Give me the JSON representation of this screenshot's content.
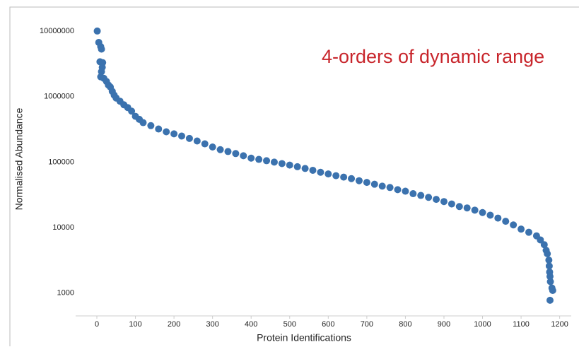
{
  "chart_data": {
    "type": "scatter",
    "annotation": "4-orders of dynamic range",
    "x_label": "Protein Identifications",
    "y_label": "Normalised Abundance",
    "x": [
      1,
      5,
      10,
      12,
      8,
      15,
      14,
      12,
      10,
      18,
      25,
      30,
      35,
      40,
      45,
      50,
      60,
      70,
      80,
      90,
      100,
      110,
      120,
      140,
      160,
      180,
      200,
      220,
      240,
      260,
      280,
      300,
      320,
      340,
      360,
      380,
      400,
      420,
      440,
      460,
      480,
      500,
      520,
      540,
      560,
      580,
      600,
      620,
      640,
      660,
      680,
      700,
      720,
      740,
      760,
      780,
      800,
      820,
      840,
      860,
      880,
      900,
      920,
      940,
      960,
      980,
      1000,
      1020,
      1040,
      1060,
      1080,
      1100,
      1120,
      1140,
      1150,
      1160,
      1165,
      1168,
      1172,
      1173,
      1174,
      1175,
      1176,
      1180,
      1182,
      1175
    ],
    "values": [
      10000000,
      6700000,
      5800000,
      5300000,
      3400000,
      3300000,
      2800000,
      2400000,
      2000000,
      1900000,
      1700000,
      1500000,
      1400000,
      1200000,
      1050000,
      950000,
      850000,
      750000,
      680000,
      600000,
      500000,
      450000,
      400000,
      360000,
      320000,
      290000,
      270000,
      250000,
      230000,
      210000,
      190000,
      170000,
      155000,
      145000,
      135000,
      125000,
      115000,
      110000,
      105000,
      100000,
      95000,
      90000,
      85000,
      80000,
      75000,
      70000,
      66000,
      62000,
      59000,
      56000,
      52000,
      49000,
      46000,
      43000,
      41000,
      38000,
      36000,
      33000,
      31000,
      29000,
      27000,
      25000,
      23000,
      21000,
      20000,
      18500,
      17000,
      15500,
      14000,
      12500,
      11000,
      9500,
      8500,
      7500,
      6500,
      5500,
      4500,
      4000,
      3200,
      2600,
      2100,
      1800,
      1500,
      1200,
      1100,
      780
    ],
    "color": "#3b72ae",
    "annotation_color": "#c8262c",
    "log_y": true,
    "xlim": [
      -55,
      1230
    ],
    "xticks": [
      0,
      100,
      200,
      300,
      400,
      500,
      600,
      700,
      800,
      900,
      1000,
      1100,
      1200
    ],
    "ylim": [
      450,
      16000000
    ],
    "yticks": [
      1000,
      10000,
      100000,
      1000000,
      10000000
    ]
  }
}
